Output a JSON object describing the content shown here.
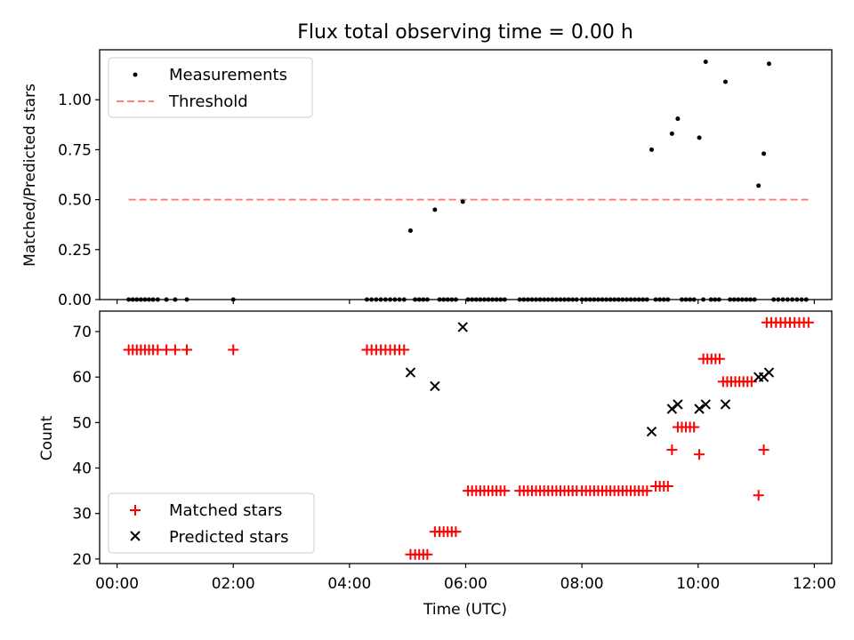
{
  "chart_data": [
    {
      "type": "scatter",
      "title": "Flux total observing time = 0.00 h",
      "xlabel": "",
      "ylabel": "Matched/Predicted stars",
      "xlim": [
        -0.3,
        12.3
      ],
      "ylim": [
        0.0,
        1.25
      ],
      "yticks": [
        0.0,
        0.25,
        0.5,
        0.75,
        1.0
      ],
      "ytick_labels": [
        "0.00",
        "0.25",
        "0.50",
        "0.75",
        "1.00"
      ],
      "legend_position": "top-left",
      "series": [
        {
          "name": "Measurements",
          "style": "dot",
          "color": "#000000",
          "points": [
            [
              0.2,
              0
            ],
            [
              0.27,
              0
            ],
            [
              0.34,
              0
            ],
            [
              0.41,
              0
            ],
            [
              0.48,
              0
            ],
            [
              0.55,
              0
            ],
            [
              0.62,
              0
            ],
            [
              0.7,
              0
            ],
            [
              0.85,
              0
            ],
            [
              1.0,
              0
            ],
            [
              1.2,
              0
            ],
            [
              2.0,
              0
            ],
            [
              4.3,
              0
            ],
            [
              4.38,
              0
            ],
            [
              4.46,
              0
            ],
            [
              4.54,
              0
            ],
            [
              4.62,
              0
            ],
            [
              4.7,
              0
            ],
            [
              4.78,
              0
            ],
            [
              4.86,
              0
            ],
            [
              4.94,
              0
            ],
            [
              5.05,
              0.345
            ],
            [
              5.13,
              0
            ],
            [
              5.2,
              0
            ],
            [
              5.27,
              0
            ],
            [
              5.34,
              0
            ],
            [
              5.47,
              0.45
            ],
            [
              5.55,
              0
            ],
            [
              5.62,
              0
            ],
            [
              5.69,
              0
            ],
            [
              5.76,
              0
            ],
            [
              5.83,
              0
            ],
            [
              5.95,
              0.49
            ],
            [
              6.04,
              0
            ],
            [
              6.11,
              0
            ],
            [
              6.18,
              0
            ],
            [
              6.25,
              0
            ],
            [
              6.32,
              0
            ],
            [
              6.39,
              0
            ],
            [
              6.46,
              0
            ],
            [
              6.53,
              0
            ],
            [
              6.6,
              0
            ],
            [
              6.67,
              0
            ],
            [
              6.93,
              0
            ],
            [
              7.0,
              0
            ],
            [
              7.07,
              0
            ],
            [
              7.14,
              0
            ],
            [
              7.21,
              0
            ],
            [
              7.28,
              0
            ],
            [
              7.35,
              0
            ],
            [
              7.42,
              0
            ],
            [
              7.49,
              0
            ],
            [
              7.56,
              0
            ],
            [
              7.63,
              0
            ],
            [
              7.7,
              0
            ],
            [
              7.77,
              0
            ],
            [
              7.84,
              0
            ],
            [
              7.91,
              0
            ],
            [
              8.0,
              0
            ],
            [
              8.07,
              0
            ],
            [
              8.14,
              0
            ],
            [
              8.21,
              0
            ],
            [
              8.28,
              0
            ],
            [
              8.35,
              0
            ],
            [
              8.42,
              0
            ],
            [
              8.49,
              0
            ],
            [
              8.56,
              0
            ],
            [
              8.63,
              0
            ],
            [
              8.7,
              0
            ],
            [
              8.77,
              0
            ],
            [
              8.84,
              0
            ],
            [
              8.91,
              0
            ],
            [
              8.98,
              0
            ],
            [
              9.05,
              0
            ],
            [
              9.12,
              0
            ],
            [
              9.2,
              0.75
            ],
            [
              9.27,
              0
            ],
            [
              9.34,
              0
            ],
            [
              9.41,
              0
            ],
            [
              9.48,
              0
            ],
            [
              9.55,
              0.83
            ],
            [
              9.65,
              0.905
            ],
            [
              9.72,
              0
            ],
            [
              9.79,
              0
            ],
            [
              9.86,
              0
            ],
            [
              9.93,
              0
            ],
            [
              10.02,
              0.81
            ],
            [
              10.09,
              0
            ],
            [
              10.13,
              1.19
            ],
            [
              10.22,
              0
            ],
            [
              10.29,
              0
            ],
            [
              10.36,
              0
            ],
            [
              10.47,
              1.09
            ],
            [
              10.55,
              0
            ],
            [
              10.62,
              0
            ],
            [
              10.69,
              0
            ],
            [
              10.76,
              0
            ],
            [
              10.83,
              0
            ],
            [
              10.9,
              0
            ],
            [
              10.97,
              0
            ],
            [
              11.04,
              0.57
            ],
            [
              11.13,
              0.73
            ],
            [
              11.22,
              1.18
            ],
            [
              11.3,
              0
            ],
            [
              11.38,
              0
            ],
            [
              11.46,
              0
            ],
            [
              11.54,
              0
            ],
            [
              11.62,
              0
            ],
            [
              11.7,
              0
            ],
            [
              11.78,
              0
            ],
            [
              11.86,
              0
            ]
          ]
        },
        {
          "name": "Threshold",
          "style": "dashed-line",
          "color": "#ff7f7f",
          "points": [
            [
              0.2,
              0.5
            ],
            [
              11.9,
              0.5
            ]
          ]
        }
      ]
    },
    {
      "type": "scatter",
      "title": "",
      "xlabel": "Time (UTC)",
      "ylabel": "Count",
      "xlim": [
        -0.3,
        12.3
      ],
      "ylim": [
        19,
        74.5
      ],
      "yticks": [
        20,
        30,
        40,
        50,
        60,
        70
      ],
      "ytick_labels": [
        "20",
        "30",
        "40",
        "50",
        "60",
        "70"
      ],
      "xticks": [
        0,
        2,
        4,
        6,
        8,
        10,
        12
      ],
      "xtick_labels": [
        "00:00",
        "02:00",
        "04:00",
        "06:00",
        "08:00",
        "10:00",
        "12:00"
      ],
      "legend_position": "bottom-left",
      "series": [
        {
          "name": "Matched stars",
          "style": "plus",
          "color": "#ff0000",
          "points": [
            [
              0.2,
              66
            ],
            [
              0.27,
              66
            ],
            [
              0.34,
              66
            ],
            [
              0.41,
              66
            ],
            [
              0.48,
              66
            ],
            [
              0.55,
              66
            ],
            [
              0.62,
              66
            ],
            [
              0.7,
              66
            ],
            [
              0.85,
              66
            ],
            [
              1.0,
              66
            ],
            [
              1.2,
              66
            ],
            [
              2.0,
              66
            ],
            [
              4.3,
              66
            ],
            [
              4.38,
              66
            ],
            [
              4.46,
              66
            ],
            [
              4.54,
              66
            ],
            [
              4.62,
              66
            ],
            [
              4.7,
              66
            ],
            [
              4.78,
              66
            ],
            [
              4.86,
              66
            ],
            [
              4.94,
              66
            ],
            [
              5.05,
              21
            ],
            [
              5.13,
              21
            ],
            [
              5.2,
              21
            ],
            [
              5.27,
              21
            ],
            [
              5.34,
              21
            ],
            [
              5.47,
              26
            ],
            [
              5.55,
              26
            ],
            [
              5.62,
              26
            ],
            [
              5.69,
              26
            ],
            [
              5.76,
              26
            ],
            [
              5.83,
              26
            ],
            [
              6.04,
              35
            ],
            [
              6.11,
              35
            ],
            [
              6.18,
              35
            ],
            [
              6.25,
              35
            ],
            [
              6.32,
              35
            ],
            [
              6.39,
              35
            ],
            [
              6.46,
              35
            ],
            [
              6.53,
              35
            ],
            [
              6.6,
              35
            ],
            [
              6.67,
              35
            ],
            [
              6.93,
              35
            ],
            [
              7.0,
              35
            ],
            [
              7.07,
              35
            ],
            [
              7.14,
              35
            ],
            [
              7.21,
              35
            ],
            [
              7.28,
              35
            ],
            [
              7.35,
              35
            ],
            [
              7.42,
              35
            ],
            [
              7.49,
              35
            ],
            [
              7.56,
              35
            ],
            [
              7.63,
              35
            ],
            [
              7.7,
              35
            ],
            [
              7.77,
              35
            ],
            [
              7.84,
              35
            ],
            [
              7.91,
              35
            ],
            [
              8.0,
              35
            ],
            [
              8.07,
              35
            ],
            [
              8.14,
              35
            ],
            [
              8.21,
              35
            ],
            [
              8.28,
              35
            ],
            [
              8.35,
              35
            ],
            [
              8.42,
              35
            ],
            [
              8.49,
              35
            ],
            [
              8.56,
              35
            ],
            [
              8.63,
              35
            ],
            [
              8.7,
              35
            ],
            [
              8.77,
              35
            ],
            [
              8.84,
              35
            ],
            [
              8.91,
              35
            ],
            [
              8.98,
              35
            ],
            [
              9.05,
              35
            ],
            [
              9.12,
              35
            ],
            [
              9.27,
              36
            ],
            [
              9.34,
              36
            ],
            [
              9.41,
              36
            ],
            [
              9.48,
              36
            ],
            [
              9.55,
              44
            ],
            [
              9.65,
              49
            ],
            [
              9.72,
              49
            ],
            [
              9.79,
              49
            ],
            [
              9.86,
              49
            ],
            [
              9.93,
              49
            ],
            [
              10.02,
              43
            ],
            [
              10.09,
              64
            ],
            [
              10.16,
              64
            ],
            [
              10.23,
              64
            ],
            [
              10.3,
              64
            ],
            [
              10.37,
              64
            ],
            [
              10.43,
              59
            ],
            [
              10.5,
              59
            ],
            [
              10.57,
              59
            ],
            [
              10.64,
              59
            ],
            [
              10.71,
              59
            ],
            [
              10.78,
              59
            ],
            [
              10.85,
              59
            ],
            [
              10.92,
              59
            ],
            [
              11.04,
              34
            ],
            [
              11.13,
              44
            ],
            [
              11.18,
              72
            ],
            [
              11.26,
              72
            ],
            [
              11.34,
              72
            ],
            [
              11.42,
              72
            ],
            [
              11.5,
              72
            ],
            [
              11.58,
              72
            ],
            [
              11.66,
              72
            ],
            [
              11.74,
              72
            ],
            [
              11.82,
              72
            ],
            [
              11.9,
              72
            ]
          ]
        },
        {
          "name": "Predicted stars",
          "style": "x",
          "color": "#000000",
          "points": [
            [
              5.05,
              61
            ],
            [
              5.47,
              58
            ],
            [
              5.95,
              71
            ],
            [
              9.2,
              48
            ],
            [
              9.55,
              53
            ],
            [
              9.65,
              54
            ],
            [
              10.02,
              53
            ],
            [
              10.13,
              54
            ],
            [
              10.47,
              54
            ],
            [
              11.04,
              60
            ],
            [
              11.13,
              60
            ],
            [
              11.22,
              61
            ]
          ]
        }
      ]
    }
  ]
}
